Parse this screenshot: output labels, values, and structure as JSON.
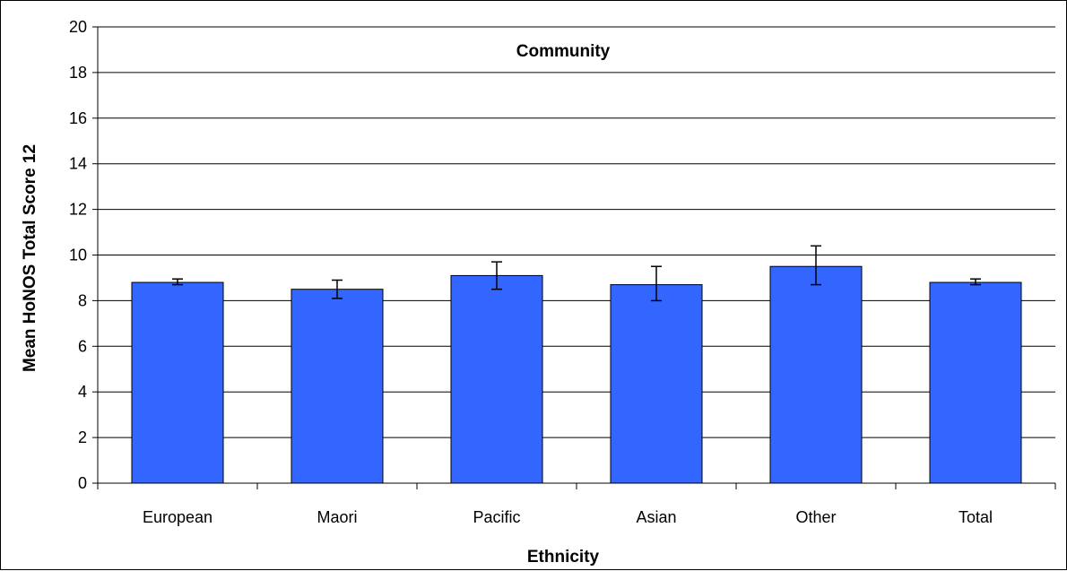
{
  "chart_data": {
    "type": "bar",
    "title": "Community",
    "xlabel": "Ethnicity",
    "ylabel": "Mean HoNOS Total Score 12",
    "categories": [
      "European",
      "Maori",
      "Pacific",
      "Asian",
      "Other",
      "Total"
    ],
    "series": [
      {
        "values": [
          8.8,
          8.5,
          9.1,
          8.7,
          9.5,
          8.8
        ],
        "error_low": [
          8.7,
          8.1,
          8.5,
          8.0,
          8.7,
          8.7
        ],
        "error_high": [
          8.95,
          8.9,
          9.7,
          9.5,
          10.4,
          8.95
        ],
        "color": "#3366FF"
      }
    ],
    "ylim": [
      0,
      20
    ],
    "yticks": [
      "0",
      "2",
      "4",
      "6",
      "8",
      "10",
      "12",
      "14",
      "16",
      "18",
      "20"
    ],
    "grid": true,
    "legend": "none"
  }
}
